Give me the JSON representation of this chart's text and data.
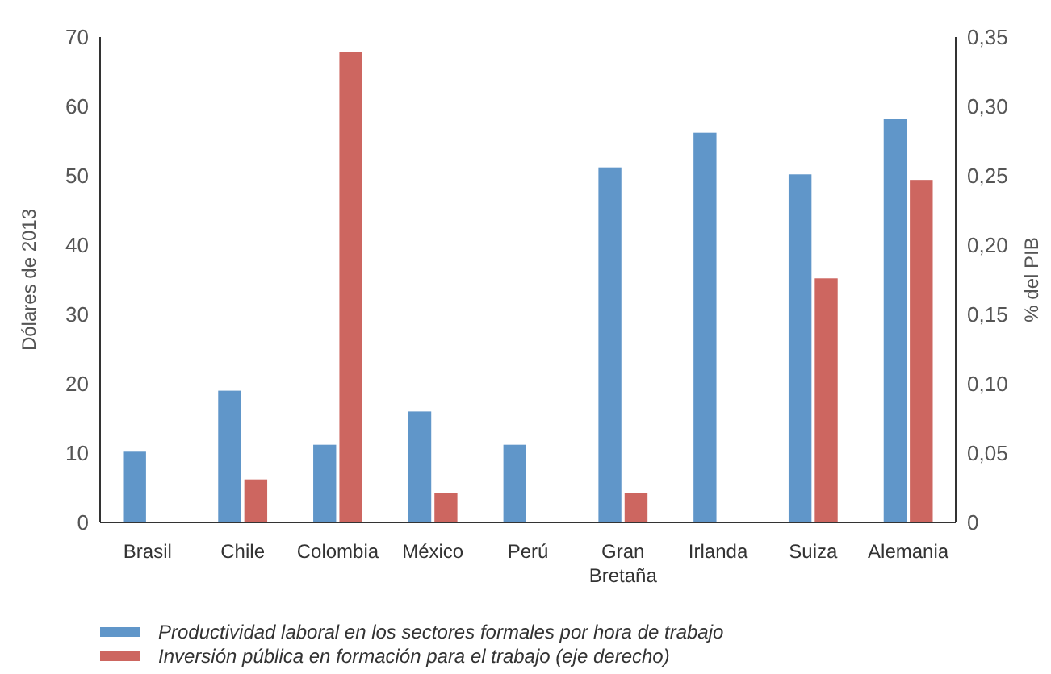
{
  "chart_data": {
    "type": "bar",
    "categories": [
      "Brasil",
      "Chile",
      "Colombia",
      "México",
      "Perú",
      "Gran Bretaña",
      "Irlanda",
      "Suiza",
      "Alemania"
    ],
    "series": [
      {
        "name": "Productividad laboral en los sectores formales por hora de trabajo",
        "color": "#6096c9",
        "values": [
          10.2,
          19,
          11.2,
          16,
          11.2,
          51.2,
          56.2,
          50.2,
          58.2
        ]
      },
      {
        "name": "Inversión pública en formación para el trabajo (eje derecho)",
        "color": "#cd6660",
        "axis": "y2",
        "values": [
          null,
          0.031,
          0.339,
          0.021,
          null,
          0.021,
          null,
          0.176,
          0.247
        ]
      }
    ],
    "ylabel": "Dólares de 2013",
    "y2label": "% del PIB",
    "ylim": [
      0,
      70
    ],
    "yticks": [
      0,
      10,
      20,
      30,
      40,
      50,
      60,
      70
    ],
    "y2lim": [
      0,
      0.35
    ],
    "y2ticks": [
      {
        "value": 0,
        "label": "0"
      },
      {
        "value": 0.05,
        "label": "0,05"
      },
      {
        "value": 0.1,
        "label": "0,10"
      },
      {
        "value": 0.15,
        "label": "0,15"
      },
      {
        "value": 0.2,
        "label": "0,20"
      },
      {
        "value": 0.25,
        "label": "0,25"
      },
      {
        "value": 0.3,
        "label": "0,30"
      },
      {
        "value": 0.35,
        "label": "0,35"
      }
    ],
    "grid": false,
    "legend": "bottom left"
  }
}
